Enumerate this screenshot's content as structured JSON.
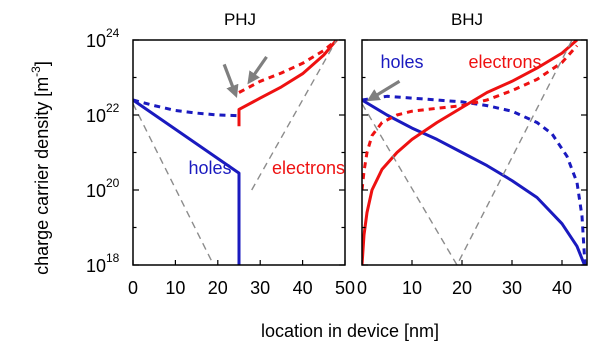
{
  "figure": {
    "xlabel": "location in device [nm]",
    "ylabel_main": "charge carrier density [m",
    "ylabel_exp": "-3",
    "ylabel_close": "]"
  },
  "colors": {
    "holes": "#1a1abf",
    "electrons": "#ee1111",
    "guide": "#8c8c8c",
    "arrow": "#7f7f7f"
  },
  "chart_data": [
    {
      "type": "line",
      "title": "PHJ",
      "xlabel": "",
      "ylabel": "",
      "xlim": [
        0,
        50
      ],
      "ylim_log10": [
        18,
        24
      ],
      "yscale": "log",
      "x_ticks": [
        0,
        10,
        20,
        30,
        40,
        50
      ],
      "y_ticks": [
        {
          "base": "10",
          "exp": "18"
        },
        {
          "base": "10",
          "exp": "20"
        },
        {
          "base": "10",
          "exp": "22"
        },
        {
          "base": "10",
          "exp": "24"
        }
      ],
      "annotations": [
        {
          "text": "holes",
          "color": "holes"
        },
        {
          "text": "electrons",
          "color": "electrons"
        }
      ],
      "arrows": [
        {
          "x_tail": 21.5,
          "log_y_tail": 23.35,
          "x_head": 24.2,
          "log_y_head": 22.55
        },
        {
          "x_tail": 31.5,
          "log_y_tail": 23.55,
          "x_head": 27.5,
          "log_y_head": 22.9
        }
      ],
      "series": [
        {
          "color": "holes",
          "style": "solid",
          "x": [
            0,
            25,
            25
          ],
          "log10_y": [
            22.4,
            20.45,
            18
          ]
        },
        {
          "color": "holes",
          "style": "dashed",
          "x": [
            0,
            5,
            10,
            15,
            20,
            25
          ],
          "log10_y": [
            22.4,
            22.25,
            22.12,
            22.05,
            22.0,
            21.98
          ]
        },
        {
          "color": "electrons",
          "style": "solid",
          "x": [
            25,
            25,
            30,
            35,
            40,
            45,
            48
          ],
          "log10_y": [
            21.7,
            22.15,
            22.45,
            22.75,
            23.1,
            23.6,
            24.0
          ]
        },
        {
          "color": "electrons",
          "style": "dashed",
          "x": [
            25,
            30,
            35,
            40,
            45,
            48
          ],
          "log10_y": [
            22.6,
            22.9,
            23.12,
            23.38,
            23.72,
            24.0
          ]
        },
        {
          "color": "guide",
          "style": "dashed",
          "x": [
            0,
            19
          ],
          "log10_y": [
            22.3,
            18
          ]
        },
        {
          "color": "guide",
          "style": "dashed",
          "x": [
            28,
            48
          ],
          "log10_y": [
            20.0,
            24.0
          ]
        }
      ]
    },
    {
      "type": "line",
      "title": "BHJ",
      "xlabel": "",
      "ylabel": "",
      "xlim": [
        0,
        45
      ],
      "ylim_log10": [
        18,
        24
      ],
      "yscale": "log",
      "x_ticks": [
        0,
        10,
        20,
        30,
        40
      ],
      "y_ticks": [],
      "annotations": [
        {
          "text": "holes",
          "color": "holes"
        },
        {
          "text": "electrons",
          "color": "electrons"
        }
      ],
      "arrows": [
        {
          "x_tail": 7.5,
          "log_y_tail": 22.9,
          "x_head": 1.6,
          "log_y_head": 22.42
        }
      ],
      "series": [
        {
          "color": "holes",
          "style": "solid",
          "x": [
            0,
            5,
            10,
            15,
            20,
            25,
            30,
            35,
            40,
            43,
            44.5
          ],
          "log10_y": [
            22.4,
            22.0,
            21.65,
            21.35,
            21.0,
            20.65,
            20.25,
            19.8,
            19.1,
            18.5,
            18.0
          ]
        },
        {
          "color": "holes",
          "style": "dashed",
          "x": [
            0,
            5,
            10,
            15,
            20,
            25,
            30,
            35,
            38,
            41,
            43,
            44,
            44.6
          ],
          "log10_y": [
            22.4,
            22.5,
            22.45,
            22.4,
            22.35,
            22.25,
            22.1,
            21.8,
            21.5,
            20.9,
            20.2,
            19.3,
            18.0
          ]
        },
        {
          "color": "electrons",
          "style": "solid",
          "x": [
            0,
            0.4,
            1,
            2,
            4,
            7,
            10,
            15,
            20,
            25,
            30,
            35,
            40,
            43
          ],
          "log10_y": [
            18.0,
            18.8,
            19.4,
            20.0,
            20.55,
            21.0,
            21.35,
            21.8,
            22.2,
            22.6,
            22.9,
            23.25,
            23.65,
            24.0
          ]
        },
        {
          "color": "electrons",
          "style": "dashed",
          "x": [
            0,
            0.4,
            1,
            2,
            4,
            7,
            10,
            15,
            20,
            25,
            30,
            35,
            40,
            43
          ],
          "log10_y": [
            20.0,
            20.5,
            21.0,
            21.45,
            21.8,
            22.0,
            22.1,
            22.18,
            22.25,
            22.4,
            22.65,
            22.95,
            23.4,
            23.85
          ]
        },
        {
          "color": "guide",
          "style": "dashed",
          "x": [
            0,
            19,
            42
          ],
          "log10_y": [
            22.3,
            18.0,
            24.0
          ]
        }
      ]
    }
  ]
}
